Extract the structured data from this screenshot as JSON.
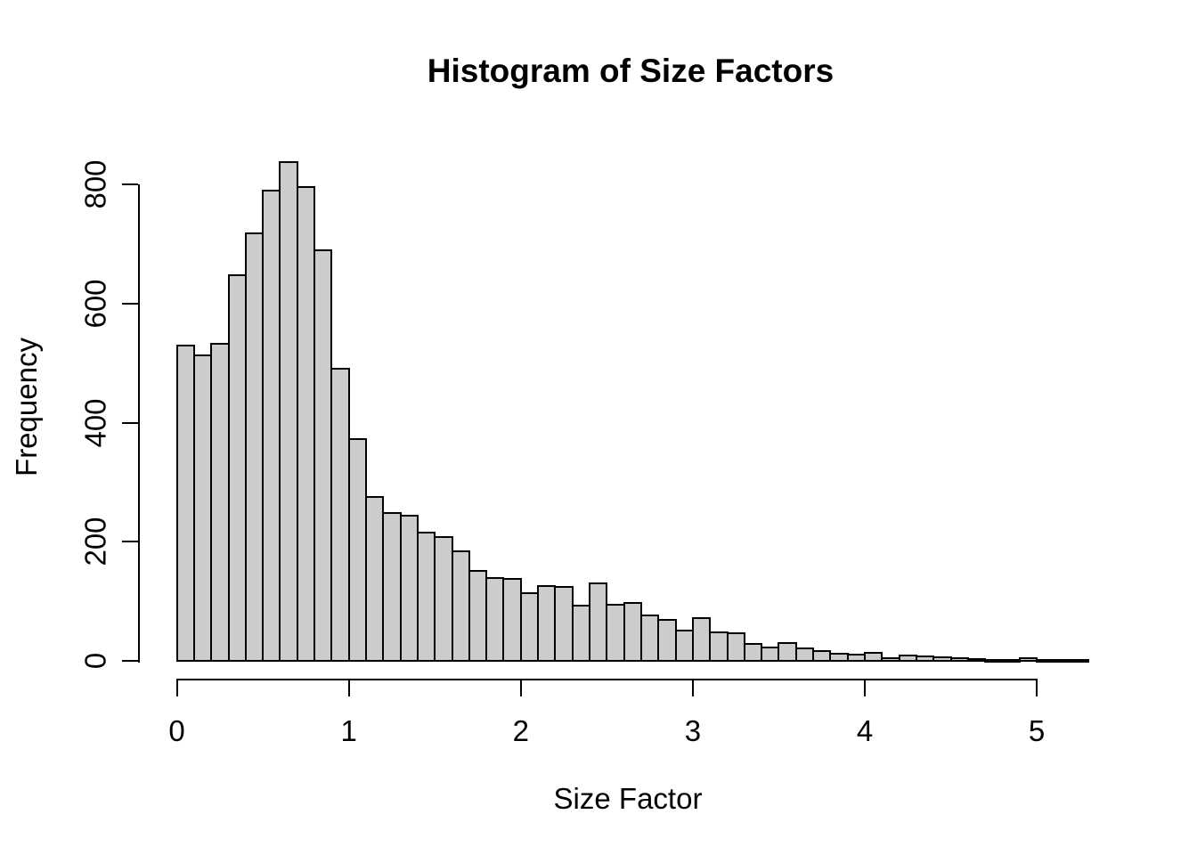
{
  "chart_data": {
    "type": "bar",
    "variant": "histogram",
    "title": "Histogram of Size Factors",
    "xlabel": "Size Factor",
    "ylabel": "Frequency",
    "bin_start": 0,
    "bin_width": 0.1,
    "counts": [
      530,
      513,
      532,
      648,
      718,
      790,
      838,
      795,
      690,
      490,
      372,
      275,
      248,
      243,
      216,
      208,
      184,
      151,
      139,
      138,
      114,
      125,
      124,
      93,
      130,
      94,
      97,
      77,
      69,
      51,
      72,
      48,
      47,
      28,
      22,
      30,
      21,
      16,
      12,
      11,
      13,
      5,
      9,
      8,
      6,
      4,
      3,
      2,
      1,
      4,
      2,
      1,
      2
    ],
    "xlim": [
      0,
      5.3
    ],
    "ylim": [
      0,
      800
    ],
    "xticks": [
      0,
      1,
      2,
      3,
      4,
      5
    ],
    "yticks": [
      0,
      200,
      400,
      600,
      800
    ],
    "grid": false,
    "bar_fill_color": "#cccccc",
    "bar_border_color": "#000000",
    "background_color": "#ffffff",
    "text_color": "#000000"
  }
}
